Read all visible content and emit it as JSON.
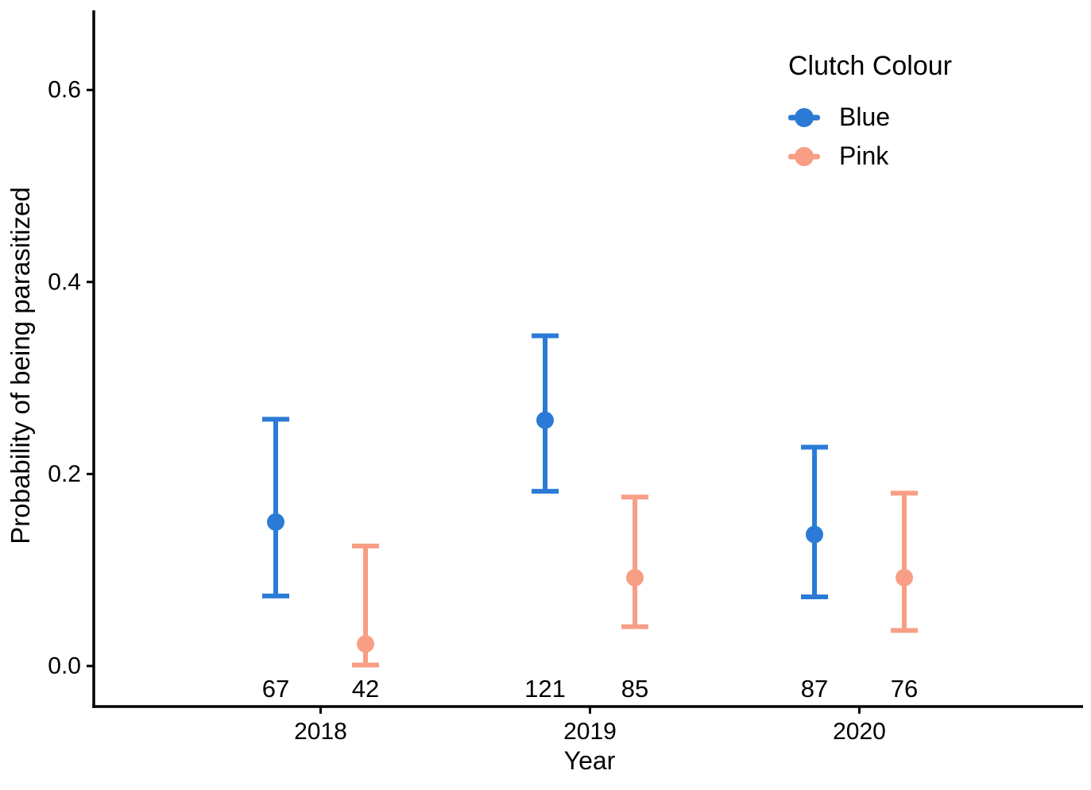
{
  "chart_data": {
    "type": "scatter",
    "subtype": "point-estimates-with-error-bars",
    "title": "",
    "xlabel": "Year",
    "ylabel": "Probability of being parasitized",
    "categories": [
      "2018",
      "2019",
      "2020"
    ],
    "y_ticks": [
      0.0,
      0.2,
      0.4,
      0.6
    ],
    "ylim": [
      -0.04,
      0.68
    ],
    "grid": "off",
    "background_color": "#ffffff",
    "axis_color": "#000000",
    "legend": {
      "title": "Clutch Colour",
      "position": "top-right",
      "entries": [
        "Blue",
        "Pink"
      ]
    },
    "series": [
      {
        "name": "Blue",
        "color": "#2b7bd6",
        "estimates": [
          0.15,
          0.256,
          0.137
        ],
        "ci_low": [
          0.073,
          0.182,
          0.072
        ],
        "ci_high": [
          0.257,
          0.344,
          0.228
        ],
        "sample_sizes": [
          67,
          121,
          87
        ]
      },
      {
        "name": "Pink",
        "color": "#f89e85",
        "estimates": [
          0.023,
          0.092,
          0.092
        ],
        "ci_low": [
          0.001,
          0.041,
          0.037
        ],
        "ci_high": [
          0.125,
          0.176,
          0.18
        ],
        "sample_sizes": [
          42,
          85,
          76
        ]
      }
    ]
  }
}
